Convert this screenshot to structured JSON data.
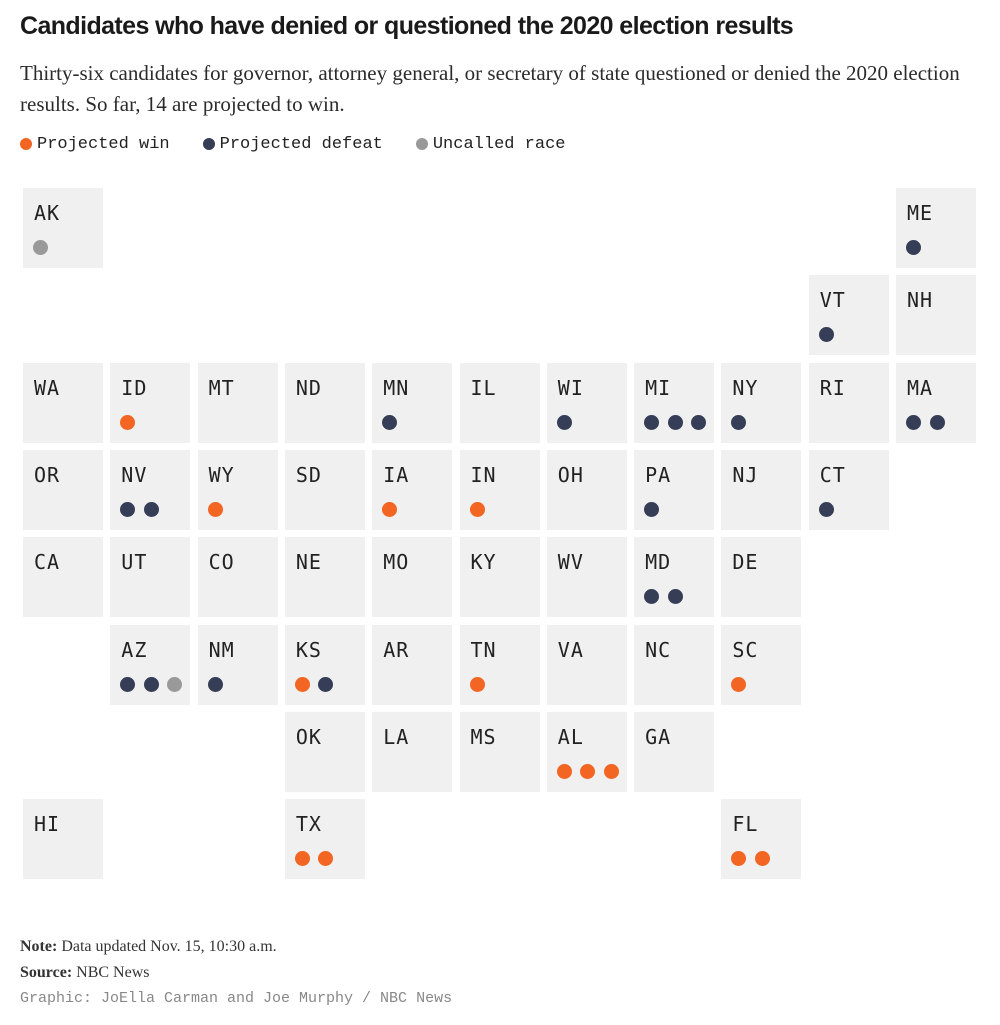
{
  "header": {
    "title": "Candidates who have denied or questioned the 2020 election results",
    "subtitle": "Thirty-six candidates for governor, attorney general, or secretary of state questioned or denied the 2020 election results. So far, 14 are projected to win."
  },
  "legend": [
    {
      "key": "win",
      "label": "Projected win",
      "color": "#f26522"
    },
    {
      "key": "defeat",
      "label": "Projected defeat",
      "color": "#353e56"
    },
    {
      "key": "uncalled",
      "label": "Uncalled race",
      "color": "#999999"
    }
  ],
  "colors": {
    "win": "#f26522",
    "defeat": "#353e56",
    "uncalled": "#999999",
    "tile": "#f0f0f0"
  },
  "states": [
    {
      "abbr": "AK",
      "row": 0,
      "col": 0,
      "candidates": [
        "uncalled"
      ]
    },
    {
      "abbr": "ME",
      "row": 0,
      "col": 10,
      "candidates": [
        "defeat"
      ]
    },
    {
      "abbr": "VT",
      "row": 1,
      "col": 9,
      "candidates": [
        "defeat"
      ]
    },
    {
      "abbr": "NH",
      "row": 1,
      "col": 10,
      "candidates": []
    },
    {
      "abbr": "WA",
      "row": 2,
      "col": 0,
      "candidates": []
    },
    {
      "abbr": "ID",
      "row": 2,
      "col": 1,
      "candidates": [
        "win"
      ]
    },
    {
      "abbr": "MT",
      "row": 2,
      "col": 2,
      "candidates": []
    },
    {
      "abbr": "ND",
      "row": 2,
      "col": 3,
      "candidates": []
    },
    {
      "abbr": "MN",
      "row": 2,
      "col": 4,
      "candidates": [
        "defeat"
      ]
    },
    {
      "abbr": "IL",
      "row": 2,
      "col": 5,
      "candidates": []
    },
    {
      "abbr": "WI",
      "row": 2,
      "col": 6,
      "candidates": [
        "defeat"
      ]
    },
    {
      "abbr": "MI",
      "row": 2,
      "col": 7,
      "candidates": [
        "defeat",
        "defeat",
        "defeat"
      ]
    },
    {
      "abbr": "NY",
      "row": 2,
      "col": 8,
      "candidates": [
        "defeat"
      ]
    },
    {
      "abbr": "RI",
      "row": 2,
      "col": 9,
      "candidates": []
    },
    {
      "abbr": "MA",
      "row": 2,
      "col": 10,
      "candidates": [
        "defeat",
        "defeat"
      ]
    },
    {
      "abbr": "OR",
      "row": 3,
      "col": 0,
      "candidates": []
    },
    {
      "abbr": "NV",
      "row": 3,
      "col": 1,
      "candidates": [
        "defeat",
        "defeat"
      ]
    },
    {
      "abbr": "WY",
      "row": 3,
      "col": 2,
      "candidates": [
        "win"
      ]
    },
    {
      "abbr": "SD",
      "row": 3,
      "col": 3,
      "candidates": []
    },
    {
      "abbr": "IA",
      "row": 3,
      "col": 4,
      "candidates": [
        "win"
      ]
    },
    {
      "abbr": "IN",
      "row": 3,
      "col": 5,
      "candidates": [
        "win"
      ]
    },
    {
      "abbr": "OH",
      "row": 3,
      "col": 6,
      "candidates": []
    },
    {
      "abbr": "PA",
      "row": 3,
      "col": 7,
      "candidates": [
        "defeat"
      ]
    },
    {
      "abbr": "NJ",
      "row": 3,
      "col": 8,
      "candidates": []
    },
    {
      "abbr": "CT",
      "row": 3,
      "col": 9,
      "candidates": [
        "defeat"
      ]
    },
    {
      "abbr": "CA",
      "row": 4,
      "col": 0,
      "candidates": []
    },
    {
      "abbr": "UT",
      "row": 4,
      "col": 1,
      "candidates": []
    },
    {
      "abbr": "CO",
      "row": 4,
      "col": 2,
      "candidates": []
    },
    {
      "abbr": "NE",
      "row": 4,
      "col": 3,
      "candidates": []
    },
    {
      "abbr": "MO",
      "row": 4,
      "col": 4,
      "candidates": []
    },
    {
      "abbr": "KY",
      "row": 4,
      "col": 5,
      "candidates": []
    },
    {
      "abbr": "WV",
      "row": 4,
      "col": 6,
      "candidates": []
    },
    {
      "abbr": "MD",
      "row": 4,
      "col": 7,
      "candidates": [
        "defeat",
        "defeat"
      ]
    },
    {
      "abbr": "DE",
      "row": 4,
      "col": 8,
      "candidates": []
    },
    {
      "abbr": "AZ",
      "row": 5,
      "col": 1,
      "candidates": [
        "defeat",
        "defeat",
        "uncalled"
      ]
    },
    {
      "abbr": "NM",
      "row": 5,
      "col": 2,
      "candidates": [
        "defeat"
      ]
    },
    {
      "abbr": "KS",
      "row": 5,
      "col": 3,
      "candidates": [
        "win",
        "defeat"
      ]
    },
    {
      "abbr": "AR",
      "row": 5,
      "col": 4,
      "candidates": []
    },
    {
      "abbr": "TN",
      "row": 5,
      "col": 5,
      "candidates": [
        "win"
      ]
    },
    {
      "abbr": "VA",
      "row": 5,
      "col": 6,
      "candidates": []
    },
    {
      "abbr": "NC",
      "row": 5,
      "col": 7,
      "candidates": []
    },
    {
      "abbr": "SC",
      "row": 5,
      "col": 8,
      "candidates": [
        "win"
      ]
    },
    {
      "abbr": "OK",
      "row": 6,
      "col": 3,
      "candidates": []
    },
    {
      "abbr": "LA",
      "row": 6,
      "col": 4,
      "candidates": []
    },
    {
      "abbr": "MS",
      "row": 6,
      "col": 5,
      "candidates": []
    },
    {
      "abbr": "AL",
      "row": 6,
      "col": 6,
      "candidates": [
        "win",
        "win",
        "win"
      ]
    },
    {
      "abbr": "GA",
      "row": 6,
      "col": 7,
      "candidates": []
    },
    {
      "abbr": "HI",
      "row": 7,
      "col": 0,
      "candidates": []
    },
    {
      "abbr": "TX",
      "row": 7,
      "col": 3,
      "candidates": [
        "win",
        "win"
      ]
    },
    {
      "abbr": "FL",
      "row": 7,
      "col": 8,
      "candidates": [
        "win",
        "win"
      ]
    }
  ],
  "footer": {
    "note_label": "Note:",
    "note_text": "Data updated Nov. 15, 10:30 a.m.",
    "source_label": "Source:",
    "source_text": "NBC News",
    "credit": "Graphic: JoElla Carman and Joe Murphy / NBC News"
  }
}
